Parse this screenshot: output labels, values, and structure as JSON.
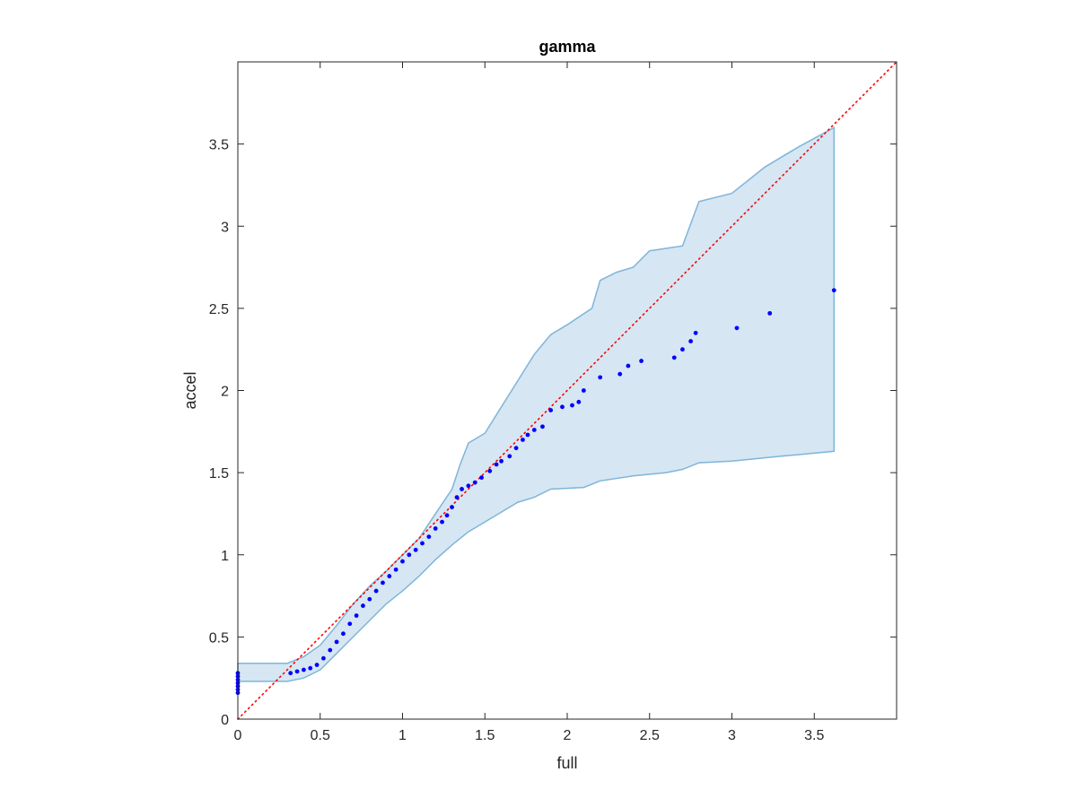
{
  "chart_data": {
    "type": "scatter",
    "title": "gamma",
    "xlabel": "full",
    "ylabel": "accel",
    "xlim": [
      0,
      4
    ],
    "ylim": [
      0,
      4
    ],
    "xticks": [
      0,
      0.5,
      1,
      1.5,
      2,
      2.5,
      3,
      3.5
    ],
    "xtick_labels": [
      "0",
      "0.5",
      "1",
      "1.5",
      "2",
      "2.5",
      "3",
      "3.5"
    ],
    "yticks": [
      0,
      0.5,
      1,
      1.5,
      2,
      2.5,
      3,
      3.5
    ],
    "ytick_labels": [
      "0",
      "0.5",
      "1",
      "1.5",
      "2",
      "2.5",
      "3",
      "3.5"
    ],
    "grid": false,
    "box": true,
    "colors": {
      "points": "#0000ff",
      "reference_line": "#ff0000",
      "band_fill": "#d6e6f3",
      "band_edge": "#7fb5d9",
      "axes": "#262626"
    },
    "reference_line": {
      "style": "dotted",
      "from": [
        0,
        0
      ],
      "to": [
        4,
        4
      ]
    },
    "confidence_band": {
      "upper": [
        [
          0,
          0.34
        ],
        [
          0.3,
          0.34
        ],
        [
          0.4,
          0.38
        ],
        [
          0.5,
          0.45
        ],
        [
          0.6,
          0.57
        ],
        [
          0.7,
          0.7
        ],
        [
          0.8,
          0.81
        ],
        [
          0.9,
          0.9
        ],
        [
          1.0,
          1.0
        ],
        [
          1.1,
          1.1
        ],
        [
          1.2,
          1.25
        ],
        [
          1.3,
          1.4
        ],
        [
          1.35,
          1.55
        ],
        [
          1.4,
          1.68
        ],
        [
          1.5,
          1.74
        ],
        [
          1.6,
          1.9
        ],
        [
          1.7,
          2.06
        ],
        [
          1.8,
          2.22
        ],
        [
          1.9,
          2.34
        ],
        [
          2.0,
          2.4
        ],
        [
          2.15,
          2.5
        ],
        [
          2.2,
          2.67
        ],
        [
          2.3,
          2.72
        ],
        [
          2.4,
          2.75
        ],
        [
          2.5,
          2.85
        ],
        [
          2.7,
          2.88
        ],
        [
          2.8,
          3.15
        ],
        [
          3.0,
          3.2
        ],
        [
          3.2,
          3.36
        ],
        [
          3.4,
          3.48
        ],
        [
          3.62,
          3.6
        ]
      ],
      "lower": [
        [
          0,
          0.23
        ],
        [
          0.3,
          0.23
        ],
        [
          0.4,
          0.25
        ],
        [
          0.5,
          0.3
        ],
        [
          0.6,
          0.4
        ],
        [
          0.7,
          0.5
        ],
        [
          0.8,
          0.6
        ],
        [
          0.9,
          0.7
        ],
        [
          1.0,
          0.78
        ],
        [
          1.1,
          0.87
        ],
        [
          1.2,
          0.97
        ],
        [
          1.3,
          1.06
        ],
        [
          1.4,
          1.14
        ],
        [
          1.5,
          1.2
        ],
        [
          1.6,
          1.26
        ],
        [
          1.7,
          1.32
        ],
        [
          1.8,
          1.35
        ],
        [
          1.9,
          1.4
        ],
        [
          2.1,
          1.41
        ],
        [
          2.2,
          1.45
        ],
        [
          2.4,
          1.48
        ],
        [
          2.6,
          1.5
        ],
        [
          2.7,
          1.52
        ],
        [
          2.8,
          1.56
        ],
        [
          3.0,
          1.57
        ],
        [
          3.3,
          1.6
        ],
        [
          3.62,
          1.63
        ]
      ]
    },
    "series": [
      {
        "points": [
          [
            0,
            0.16
          ],
          [
            0,
            0.18
          ],
          [
            0,
            0.2
          ],
          [
            0,
            0.22
          ],
          [
            0,
            0.24
          ],
          [
            0,
            0.26
          ],
          [
            0,
            0.28
          ],
          [
            0.32,
            0.28
          ],
          [
            0.36,
            0.29
          ],
          [
            0.4,
            0.3
          ],
          [
            0.44,
            0.31
          ],
          [
            0.48,
            0.33
          ],
          [
            0.52,
            0.37
          ],
          [
            0.56,
            0.42
          ],
          [
            0.6,
            0.47
          ],
          [
            0.64,
            0.52
          ],
          [
            0.68,
            0.58
          ],
          [
            0.72,
            0.63
          ],
          [
            0.76,
            0.69
          ],
          [
            0.8,
            0.73
          ],
          [
            0.84,
            0.78
          ],
          [
            0.88,
            0.83
          ],
          [
            0.92,
            0.87
          ],
          [
            0.96,
            0.91
          ],
          [
            1.0,
            0.96
          ],
          [
            1.04,
            1.0
          ],
          [
            1.08,
            1.03
          ],
          [
            1.12,
            1.07
          ],
          [
            1.16,
            1.11
          ],
          [
            1.2,
            1.16
          ],
          [
            1.24,
            1.2
          ],
          [
            1.27,
            1.24
          ],
          [
            1.3,
            1.29
          ],
          [
            1.33,
            1.35
          ],
          [
            1.36,
            1.4
          ],
          [
            1.4,
            1.42
          ],
          [
            1.44,
            1.44
          ],
          [
            1.48,
            1.47
          ],
          [
            1.53,
            1.51
          ],
          [
            1.57,
            1.55
          ],
          [
            1.6,
            1.57
          ],
          [
            1.65,
            1.6
          ],
          [
            1.69,
            1.65
          ],
          [
            1.73,
            1.7
          ],
          [
            1.76,
            1.73
          ],
          [
            1.8,
            1.76
          ],
          [
            1.85,
            1.78
          ],
          [
            1.9,
            1.88
          ],
          [
            1.97,
            1.9
          ],
          [
            2.03,
            1.91
          ],
          [
            2.07,
            1.93
          ],
          [
            2.1,
            2.0
          ],
          [
            2.2,
            2.08
          ],
          [
            2.32,
            2.1
          ],
          [
            2.37,
            2.15
          ],
          [
            2.45,
            2.18
          ],
          [
            2.65,
            2.2
          ],
          [
            2.7,
            2.25
          ],
          [
            2.75,
            2.3
          ],
          [
            2.78,
            2.35
          ],
          [
            3.03,
            2.38
          ],
          [
            3.23,
            2.47
          ],
          [
            3.62,
            2.61
          ]
        ]
      }
    ]
  }
}
